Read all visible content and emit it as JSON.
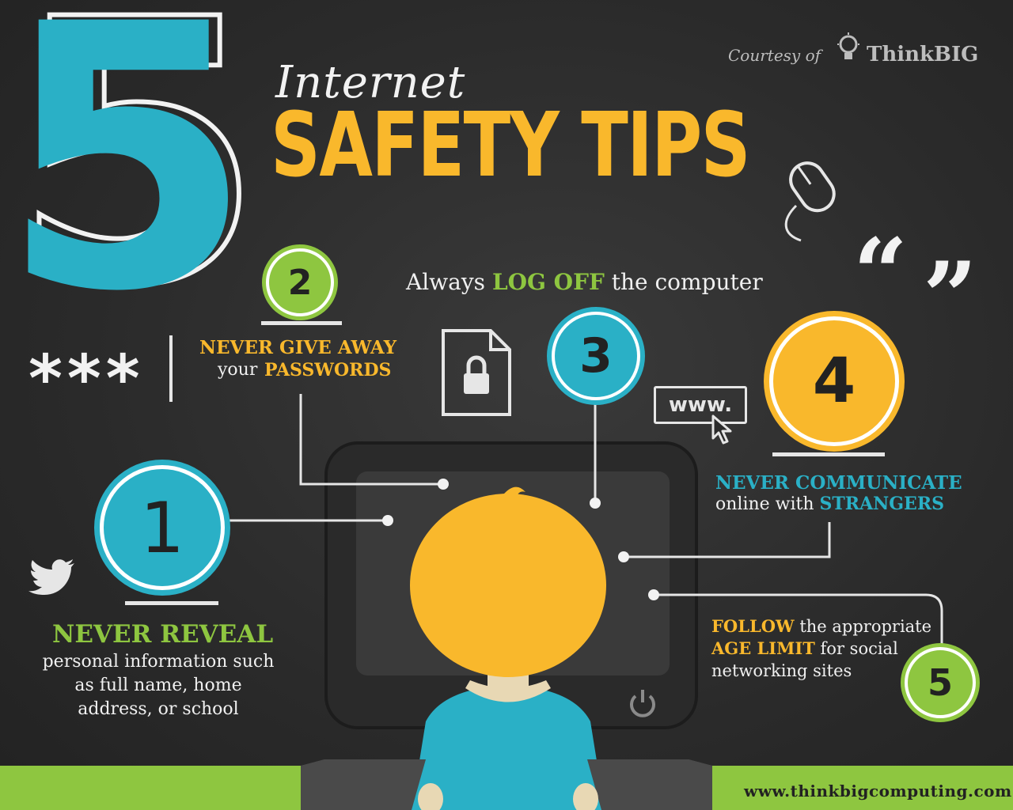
{
  "title": {
    "number": "5",
    "line1": "Internet",
    "line2": "SAFETY TIPS"
  },
  "credit": {
    "courtesy": "Courtesy of",
    "brand": "ThinkBIG"
  },
  "tips": {
    "tip1": {
      "number": "1",
      "headline": "NEVER REVEAL",
      "body": "personal information such as full name, home address, or school"
    },
    "tip2": {
      "number": "2",
      "headline": "NEVER GIVE AWAY",
      "body_prefix": "your",
      "body_highlight": "PASSWORDS"
    },
    "tip3": {
      "number": "3",
      "prefix": "Always",
      "highlight": "LOG OFF",
      "suffix": "the computer"
    },
    "tip4": {
      "number": "4",
      "headline": "NEVER COMMUNICATE",
      "body_prefix": "online with",
      "body_highlight": "STRANGERS"
    },
    "tip5": {
      "number": "5",
      "line1_highlight": "FOLLOW",
      "line1_rest": "the appropriate",
      "line2_highlight": "AGE LIMIT",
      "line2_rest": "for social",
      "line3": "networking sites"
    }
  },
  "decor": {
    "password_mask": "***",
    "url_box": "www.",
    "quote_open": "“",
    "quote_close": "”"
  },
  "footer": {
    "url": "www.thinkbigcomputing.com"
  },
  "colors": {
    "background": "#2b2b2b",
    "teal": "#2ab0c6",
    "green": "#8ec640",
    "yellow": "#f9b82c",
    "white": "#f2f2f2"
  },
  "icons": [
    "lightbulb-icon",
    "mouse-icon",
    "twitter-bird-icon",
    "lock-document-icon",
    "pointer-cursor-icon",
    "power-icon",
    "quote-icon"
  ]
}
